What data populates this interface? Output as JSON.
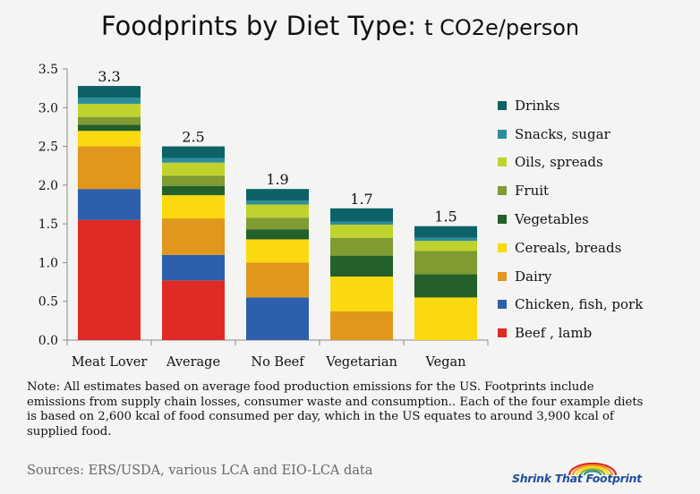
{
  "title": "Foodprints by Diet Type:",
  "title_unit": "t CO2e/person",
  "chart_data": {
    "type": "bar",
    "stacked": true,
    "categories": [
      "Meat Lover",
      "Average",
      "No Beef",
      "Vegetarian",
      "Vegan"
    ],
    "totals": [
      "3.3",
      "2.5",
      "1.9",
      "1.7",
      "1.5"
    ],
    "ylim": [
      0,
      3.5
    ],
    "yticks": [
      "0.0",
      "0.5",
      "1.0",
      "1.5",
      "2.0",
      "2.5",
      "3.0",
      "3.5"
    ],
    "legend_position": "right",
    "series": [
      {
        "name": "Beef , lamb",
        "color": "#e02a25",
        "values": [
          1.55,
          0.77,
          0,
          0,
          0
        ]
      },
      {
        "name": "Chicken, fish, pork",
        "color": "#2e5fac",
        "values": [
          0.4,
          0.33,
          0.55,
          0,
          0
        ]
      },
      {
        "name": "Dairy",
        "color": "#e0971c",
        "values": [
          0.55,
          0.47,
          0.45,
          0.37,
          0
        ]
      },
      {
        "name": "Cereals, breads",
        "color": "#fbd90f",
        "values": [
          0.2,
          0.3,
          0.3,
          0.45,
          0.55
        ]
      },
      {
        "name": "Vegetables",
        "color": "#23602a",
        "values": [
          0.08,
          0.12,
          0.13,
          0.27,
          0.3
        ]
      },
      {
        "name": "Fruit",
        "color": "#7f9b32",
        "values": [
          0.1,
          0.13,
          0.15,
          0.23,
          0.3
        ]
      },
      {
        "name": "Oils, spreads",
        "color": "#c0d22e",
        "values": [
          0.17,
          0.17,
          0.17,
          0.17,
          0.13
        ]
      },
      {
        "name": "Snacks, sugar",
        "color": "#2f8d9b",
        "values": [
          0.08,
          0.06,
          0.05,
          0.04,
          0.04
        ]
      },
      {
        "name": "Drinks",
        "color": "#0c6266",
        "values": [
          0.15,
          0.15,
          0.15,
          0.17,
          0.15
        ]
      }
    ]
  },
  "note": "Note: All estimates based on average food production emissions for the US. Footprints include emissions from supply chain losses, consumer waste and consumption..  Each of the four example diets is based on 2,600 kcal of food consumed per day, which in the US equates to around 3,900 kcal of supplied food.",
  "sources": "Sources:  ERS/USDA, various LCA and EIO-LCA data",
  "logo": {
    "text": "Shrink That Footprint",
    "arc_colors": [
      "#e02a25",
      "#f29b1d",
      "#fbd90f",
      "#7fb532",
      "#2f8d9b"
    ]
  }
}
